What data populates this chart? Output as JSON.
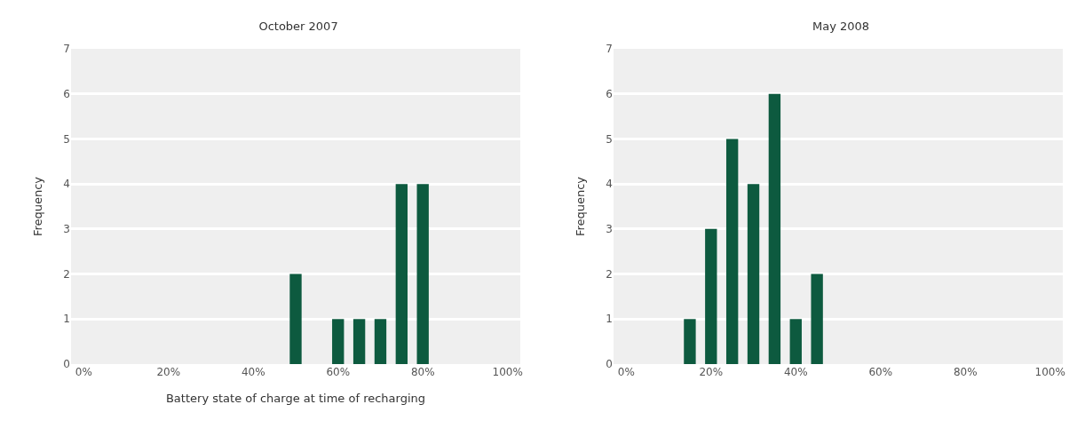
{
  "chart_data": [
    {
      "type": "bar",
      "title": "October 2007",
      "xlabel": "Battery state of charge at time of recharging",
      "ylabel": "Frequency",
      "x": [
        50,
        60,
        65,
        70,
        75,
        80
      ],
      "values": [
        2,
        1,
        1,
        1,
        4,
        4
      ],
      "color": "#0d5a3f",
      "xlim": [
        -3,
        103
      ],
      "xticks": [
        {
          "value": 0,
          "label": "0%"
        },
        {
          "value": 20,
          "label": "20%"
        },
        {
          "value": 40,
          "label": "40%"
        },
        {
          "value": 60,
          "label": "60%"
        },
        {
          "value": 80,
          "label": "80%"
        },
        {
          "value": 100,
          "label": "100%"
        }
      ],
      "ylim": [
        0,
        7
      ],
      "yticks": [
        0,
        1,
        2,
        3,
        4,
        5,
        6,
        7
      ],
      "grid": "y"
    },
    {
      "type": "bar",
      "title": "May 2008",
      "ylabel": "Frequency",
      "x": [
        15,
        20,
        25,
        30,
        35,
        40,
        45
      ],
      "values": [
        1,
        3,
        5,
        4,
        6,
        1,
        2
      ],
      "color": "#0d5a3f",
      "xlim": [
        -3,
        103
      ],
      "xticks": [
        {
          "value": 0,
          "label": "0%"
        },
        {
          "value": 20,
          "label": "20%"
        },
        {
          "value": 40,
          "label": "40%"
        },
        {
          "value": 60,
          "label": "60%"
        },
        {
          "value": 80,
          "label": "80%"
        },
        {
          "value": 100,
          "label": "100%"
        }
      ],
      "ylim": [
        0,
        7
      ],
      "yticks": [
        0,
        1,
        2,
        3,
        4,
        5,
        6,
        7
      ],
      "grid": "y"
    }
  ]
}
